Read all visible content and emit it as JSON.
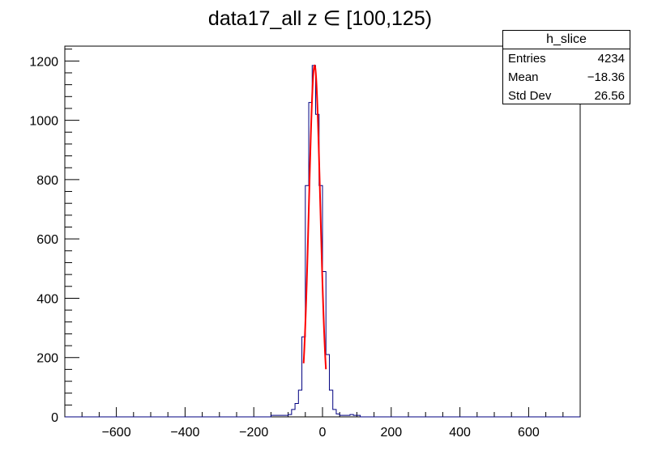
{
  "chart_data": {
    "type": "histogram",
    "title": "data17_all z  ∈ [100,125)",
    "xlim": [
      -750,
      750
    ],
    "ylim": [
      0,
      1250
    ],
    "x_ticks": [
      -600,
      -400,
      -200,
      0,
      200,
      400,
      600
    ],
    "x_tick_labels": [
      "−600",
      "−400",
      "−200",
      "0",
      "200",
      "400",
      "600"
    ],
    "y_ticks": [
      0,
      200,
      400,
      600,
      800,
      1000,
      1200
    ],
    "y_tick_labels": [
      "0",
      "200",
      "400",
      "600",
      "800",
      "1000",
      "1200"
    ],
    "bin_width": 10,
    "bins": [
      {
        "x": -150,
        "y": 5
      },
      {
        "x": -140,
        "y": 5
      },
      {
        "x": -130,
        "y": 5
      },
      {
        "x": -120,
        "y": 5
      },
      {
        "x": -110,
        "y": 5
      },
      {
        "x": -100,
        "y": 8
      },
      {
        "x": -90,
        "y": 25
      },
      {
        "x": -80,
        "y": 45
      },
      {
        "x": -70,
        "y": 90
      },
      {
        "x": -60,
        "y": 270
      },
      {
        "x": -50,
        "y": 780
      },
      {
        "x": -40,
        "y": 1060
      },
      {
        "x": -30,
        "y": 1185
      },
      {
        "x": -20,
        "y": 1020
      },
      {
        "x": -10,
        "y": 780
      },
      {
        "x": 0,
        "y": 490
      },
      {
        "x": 10,
        "y": 210
      },
      {
        "x": 20,
        "y": 90
      },
      {
        "x": 30,
        "y": 25
      },
      {
        "x": 40,
        "y": 10
      },
      {
        "x": 50,
        "y": 5
      },
      {
        "x": 60,
        "y": 5
      },
      {
        "x": 70,
        "y": 5
      },
      {
        "x": 80,
        "y": 8
      },
      {
        "x": 90,
        "y": 5
      },
      {
        "x": 100,
        "y": 5
      }
    ],
    "fit": {
      "type": "gaussian",
      "mean": -23,
      "sigma": 16.5,
      "amplitude": 1185,
      "range": [
        -55,
        10
      ],
      "color": "#ff0000"
    },
    "histogram_color": "#000080",
    "stats": {
      "name": "h_slice",
      "rows": [
        {
          "label": "Entries",
          "value": "4234"
        },
        {
          "label": "Mean",
          "value": "−18.36"
        },
        {
          "label": "Std Dev",
          "value": "26.56"
        }
      ]
    }
  }
}
